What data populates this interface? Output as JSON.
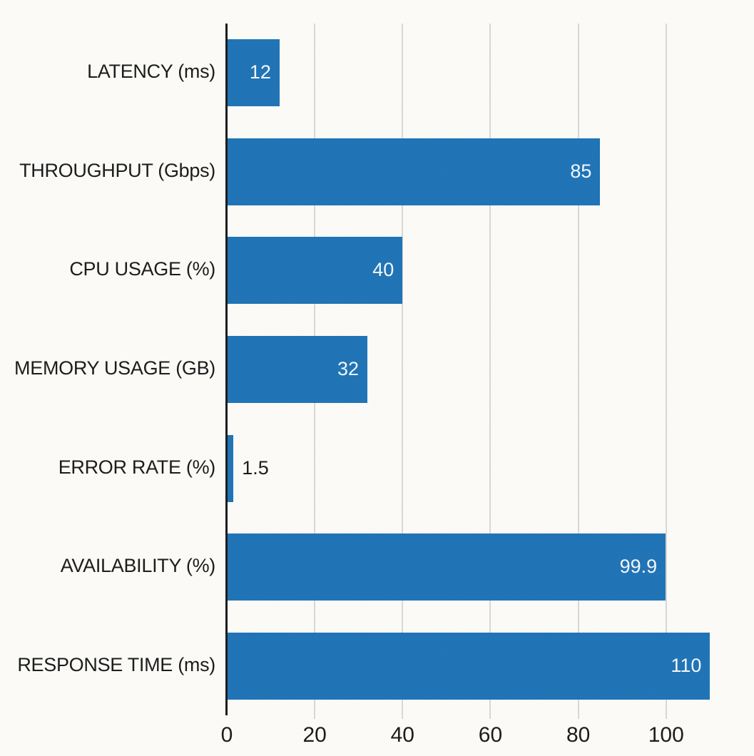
{
  "chart_data": {
    "type": "bar",
    "orientation": "horizontal",
    "title": "",
    "xlabel": "",
    "ylabel": "",
    "categories": [
      "LATENCY (ms)",
      "THROUGHPUT (Gbps)",
      "CPU USAGE (%)",
      "MEMORY USAGE (GB)",
      "ERROR RATE (%)",
      "AVAILABILITY (%)",
      "RESPONSE TIME (ms)"
    ],
    "values": [
      12,
      85,
      40,
      32,
      1.5,
      99.9,
      110
    ],
    "value_labels": [
      "12",
      "85",
      "40",
      "32",
      "1.5",
      "99.9",
      "110"
    ],
    "xlim": [
      0,
      114
    ],
    "xticks": [
      0,
      20,
      40,
      60,
      80,
      100
    ],
    "xtick_labels": [
      "0",
      "20",
      "40",
      "60",
      "80",
      "100"
    ],
    "grid": true,
    "legend": "none",
    "colors": {
      "bar": "#1e73b5",
      "grid": "#d8d8d8",
      "axis": "#1a1a1a",
      "text": "#1a1a1a",
      "value_inside": "#f5f8fb",
      "value_outside": "#1a1a1a",
      "background": "#fcfbf8"
    }
  }
}
